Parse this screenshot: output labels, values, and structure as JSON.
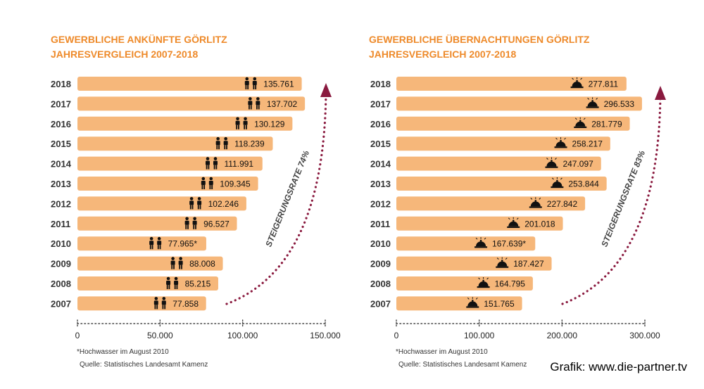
{
  "chart_data": [
    {
      "type": "bar",
      "title": "GEWERBLICHE ANKÜNFTE GÖRLITZ",
      "subtitle": "JAHRESVERGLEICH 2007-2018",
      "icon": "people-icon",
      "categories": [
        "2018",
        "2017",
        "2016",
        "2015",
        "2014",
        "2013",
        "2012",
        "2011",
        "2010",
        "2009",
        "2008",
        "2007"
      ],
      "values": [
        135761,
        137702,
        130129,
        118239,
        111991,
        109345,
        102246,
        96527,
        77965,
        88008,
        85215,
        77858
      ],
      "value_labels": [
        "135.761",
        "137.702",
        "130.129",
        "118.239",
        "111.991",
        "109.345",
        "102.246",
        "96.527",
        "77.965*",
        "88.008",
        "85.215",
        "77.858"
      ],
      "xlim": [
        0,
        150000
      ],
      "xticks": [
        0,
        50000,
        100000,
        150000
      ],
      "xtick_labels": [
        "0",
        "50.000",
        "100.000",
        "150.000"
      ],
      "annotation": "STEIGERUNGSRATE 74%",
      "footnote": "*Hochwasser im August 2010",
      "source": "Quelle: Statistisches Landesamt Kamenz"
    },
    {
      "type": "bar",
      "title": "GEWERBLICHE ÜBERNACHTUNGEN GÖRLITZ",
      "subtitle": "JAHRESVERGLEICH 2007-2018",
      "icon": "hotel-bell-icon",
      "categories": [
        "2018",
        "2017",
        "2016",
        "2015",
        "2014",
        "2013",
        "2012",
        "2011",
        "2010",
        "2009",
        "2008",
        "2007"
      ],
      "values": [
        277811,
        296533,
        281779,
        258217,
        247097,
        253844,
        227842,
        201018,
        167639,
        187427,
        164795,
        151765
      ],
      "value_labels": [
        "277.811",
        "296.533",
        "281.779",
        "258.217",
        "247.097",
        "253.844",
        "227.842",
        "201.018",
        "167.639*",
        "187.427",
        "164.795",
        "151.765"
      ],
      "xlim": [
        0,
        300000
      ],
      "xticks": [
        0,
        100000,
        200000,
        300000
      ],
      "xtick_labels": [
        "0",
        "100.000",
        "200.000",
        "300.000"
      ],
      "annotation": "STEIGERUNGSRATE 83%",
      "footnote": "*Hochwasser im August 2010",
      "source": "Quelle: Statistisches Landesamt Kamenz"
    }
  ],
  "colors": {
    "title": "#ee8a2a",
    "bar": "#f6b77a",
    "arrow": "#8a1a3f",
    "text": "#111111"
  },
  "credit": "Grafik: www.die-partner.tv"
}
